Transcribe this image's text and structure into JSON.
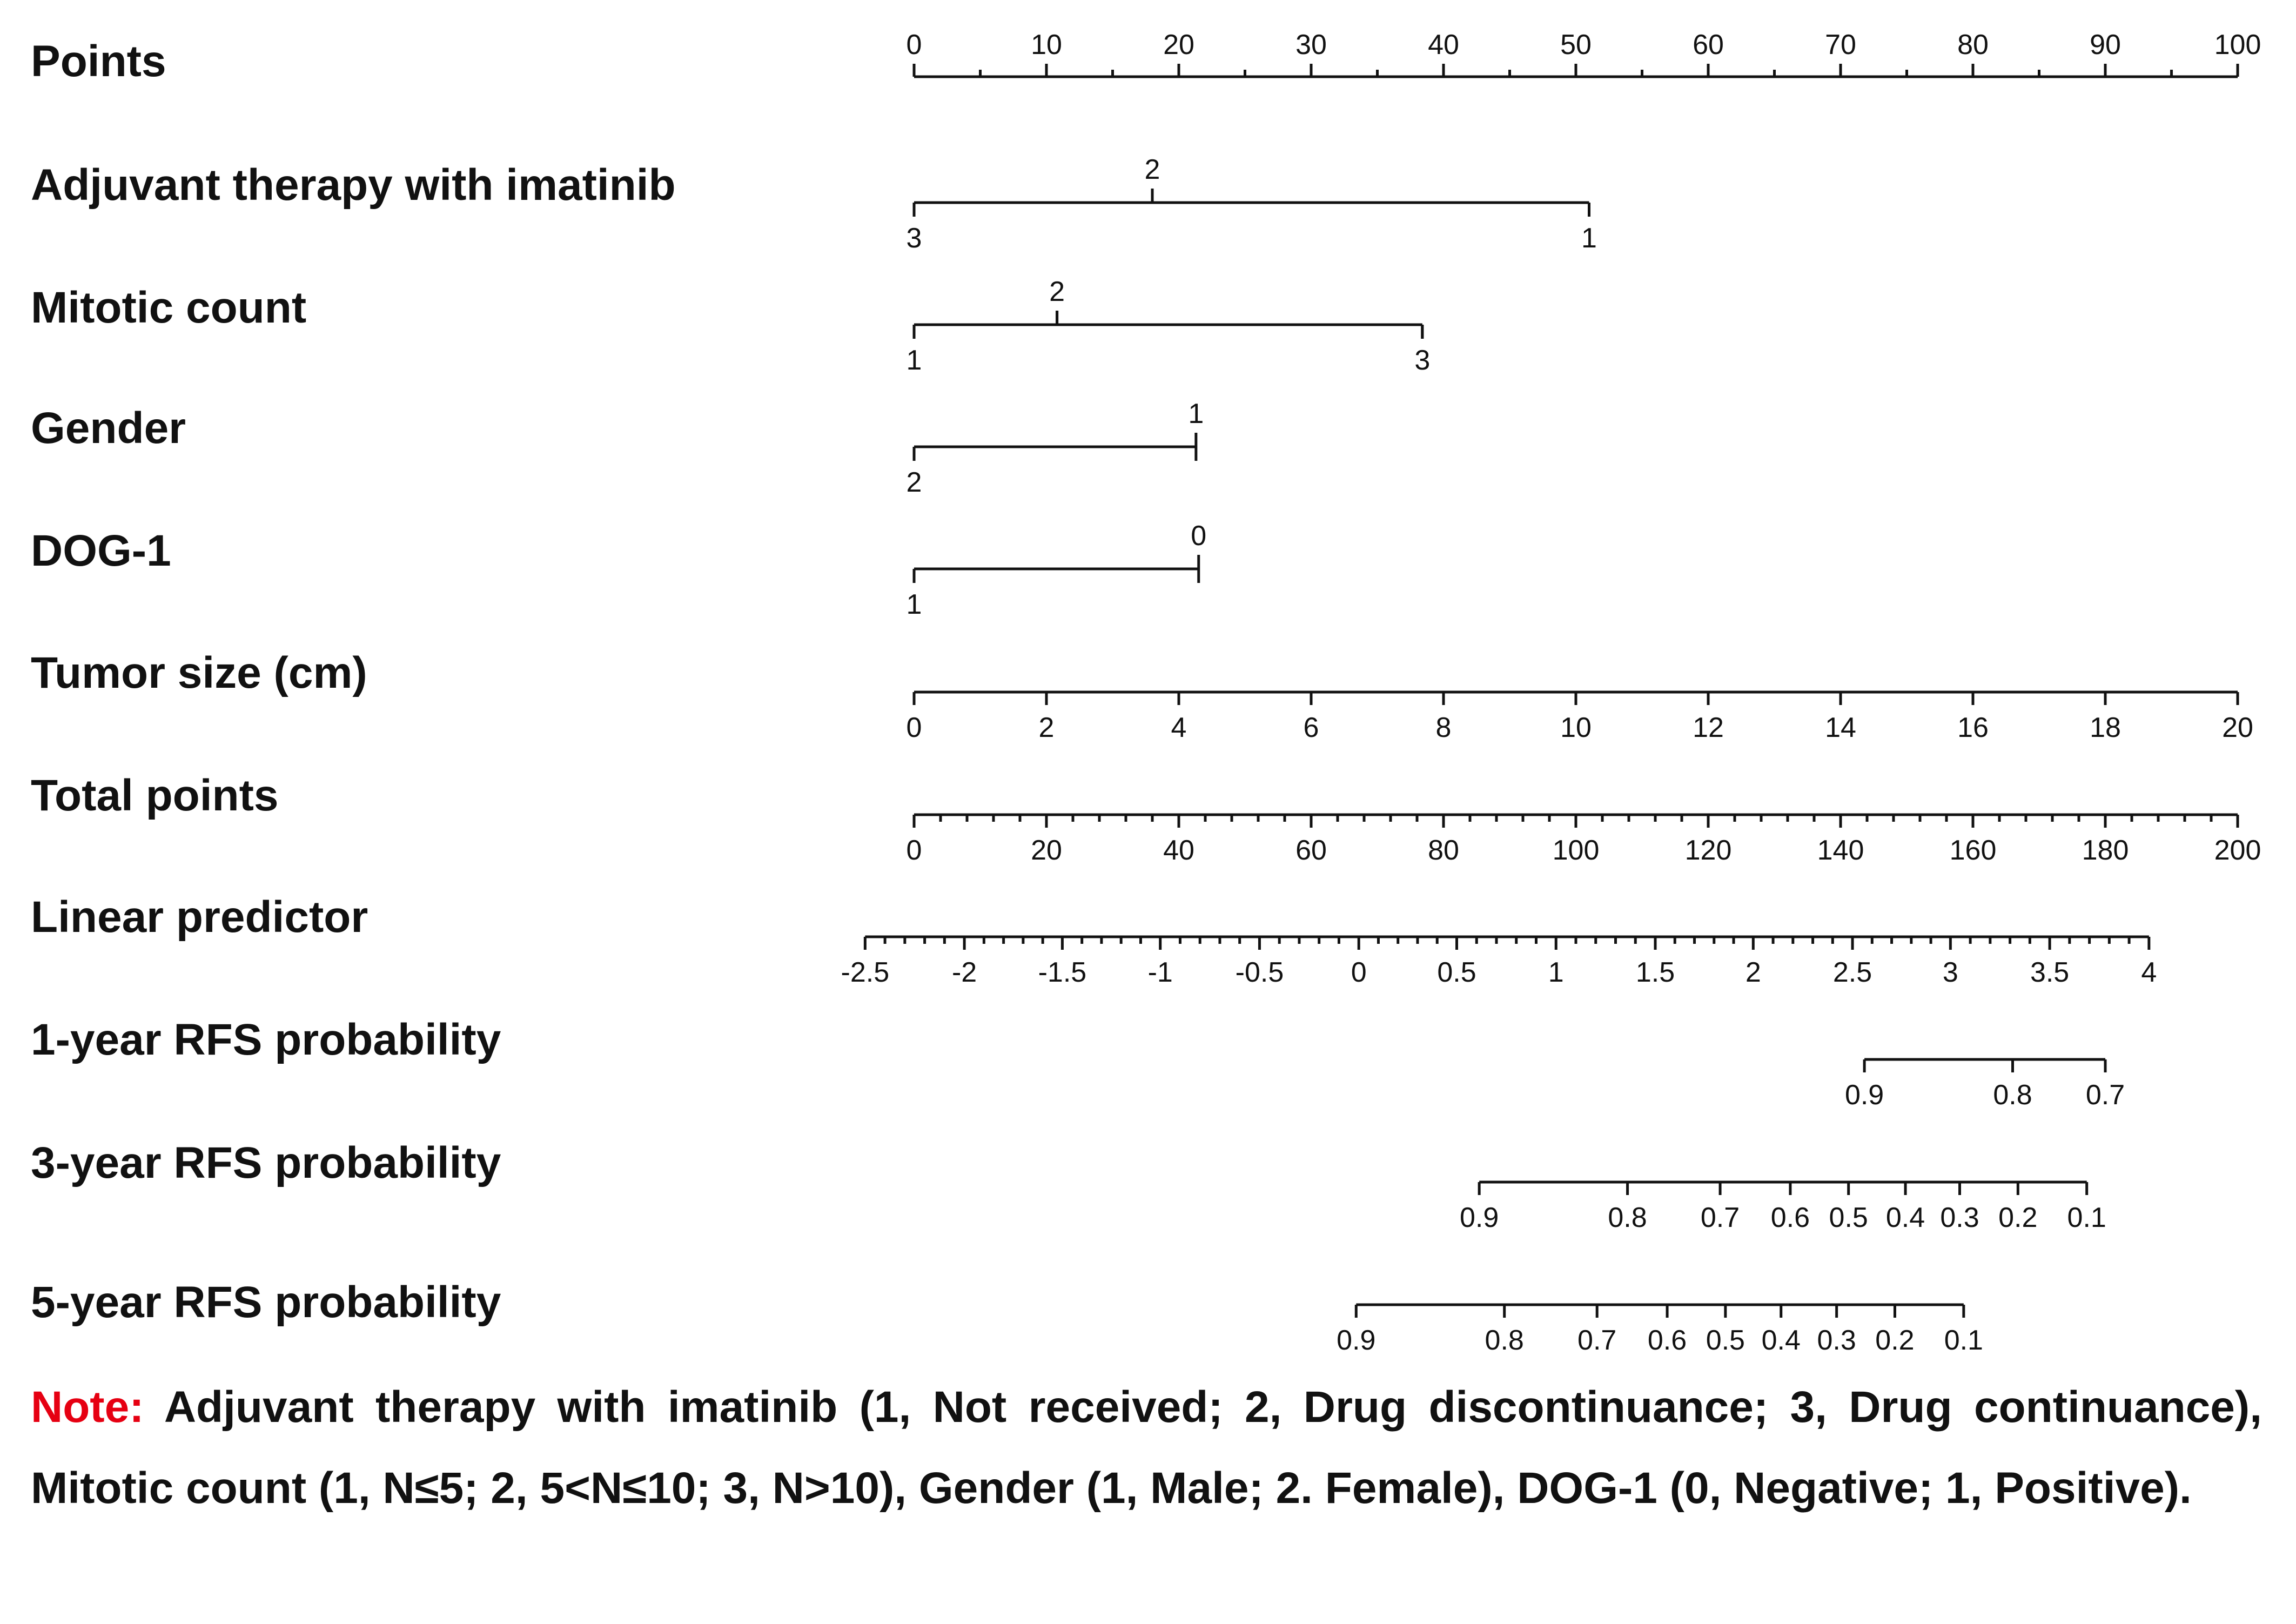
{
  "chart_data": {
    "type": "nomogram",
    "points_per_unit": 1,
    "rows": [
      {
        "name": "Points",
        "kind": "scale",
        "labels_above": true,
        "minor": 1,
        "ticks": [
          {
            "label": "0",
            "points": 0
          },
          {
            "label": "10",
            "points": 10
          },
          {
            "label": "20",
            "points": 20
          },
          {
            "label": "30",
            "points": 30
          },
          {
            "label": "40",
            "points": 40
          },
          {
            "label": "50",
            "points": 50
          },
          {
            "label": "60",
            "points": 60
          },
          {
            "label": "70",
            "points": 70
          },
          {
            "label": "80",
            "points": 80
          },
          {
            "label": "90",
            "points": 90
          },
          {
            "label": "100",
            "points": 100
          }
        ]
      },
      {
        "name": "Adjuvant therapy with imatinib",
        "kind": "categorical",
        "ticks": [
          {
            "label": "3",
            "points": 0,
            "side": "below"
          },
          {
            "label": "2",
            "points": 18,
            "side": "above"
          },
          {
            "label": "1",
            "points": 51,
            "side": "below"
          }
        ]
      },
      {
        "name": "Mitotic count",
        "kind": "categorical",
        "ticks": [
          {
            "label": "1",
            "points": 0,
            "side": "below"
          },
          {
            "label": "2",
            "points": 10.8,
            "side": "above"
          },
          {
            "label": "3",
            "points": 38.4,
            "side": "below"
          }
        ]
      },
      {
        "name": "Gender",
        "kind": "categorical",
        "ticks": [
          {
            "label": "2",
            "points": 0,
            "side": "below"
          },
          {
            "label": "1",
            "points": 21.3,
            "side": "above"
          }
        ]
      },
      {
        "name": "DOG-1",
        "kind": "categorical",
        "ticks": [
          {
            "label": "1",
            "points": 0,
            "side": "below"
          },
          {
            "label": "0",
            "points": 21.5,
            "side": "above"
          }
        ]
      },
      {
        "name": "Tumor size (cm)",
        "kind": "scale",
        "labels_above": false,
        "minor": 0,
        "ticks": [
          {
            "label": "0",
            "points": 0
          },
          {
            "label": "2",
            "points": 10
          },
          {
            "label": "4",
            "points": 20
          },
          {
            "label": "6",
            "points": 30
          },
          {
            "label": "8",
            "points": 40
          },
          {
            "label": "10",
            "points": 50
          },
          {
            "label": "12",
            "points": 60
          },
          {
            "label": "14",
            "points": 70
          },
          {
            "label": "16",
            "points": 80
          },
          {
            "label": "18",
            "points": 90
          },
          {
            "label": "20",
            "points": 100
          }
        ]
      },
      {
        "name": "Total points",
        "kind": "scale",
        "labels_above": false,
        "minor": 4,
        "ticks": [
          {
            "label": "0",
            "points": 0
          },
          {
            "label": "20",
            "points": 10
          },
          {
            "label": "40",
            "points": 20
          },
          {
            "label": "60",
            "points": 30
          },
          {
            "label": "80",
            "points": 40
          },
          {
            "label": "100",
            "points": 50
          },
          {
            "label": "120",
            "points": 60
          },
          {
            "label": "140",
            "points": 70
          },
          {
            "label": "160",
            "points": 80
          },
          {
            "label": "180",
            "points": 90
          },
          {
            "label": "200",
            "points": 100
          }
        ]
      },
      {
        "name": "Linear predictor",
        "kind": "scale",
        "labels_above": false,
        "minor": 4,
        "ticks": [
          {
            "label": "-2.5",
            "points": -3.7
          },
          {
            "label": "-2",
            "points": 3.8
          },
          {
            "label": "-1.5",
            "points": 11.2
          },
          {
            "label": "-1",
            "points": 18.6
          },
          {
            "label": "-0.5",
            "points": 26.1
          },
          {
            "label": "0",
            "points": 33.6
          },
          {
            "label": "0.5",
            "points": 41.0
          },
          {
            "label": "1",
            "points": 48.5
          },
          {
            "label": "1.5",
            "points": 56.0
          },
          {
            "label": "2",
            "points": 63.4
          },
          {
            "label": "2.5",
            "points": 70.9
          },
          {
            "label": "3",
            "points": 78.3
          },
          {
            "label": "3.5",
            "points": 85.8
          },
          {
            "label": "4",
            "points": 93.3
          }
        ]
      },
      {
        "name": "1-year RFS probability",
        "kind": "scale",
        "labels_above": false,
        "minor": 0,
        "ticks": [
          {
            "label": "0.9",
            "points": 71.8
          },
          {
            "label": "0.8",
            "points": 83.0
          },
          {
            "label": "0.7",
            "points": 90.0
          }
        ]
      },
      {
        "name": "3-year RFS probability",
        "kind": "scale",
        "labels_above": false,
        "minor": 0,
        "ticks": [
          {
            "label": "0.9",
            "points": 42.7
          },
          {
            "label": "0.8",
            "points": 53.9
          },
          {
            "label": "0.7",
            "points": 60.9
          },
          {
            "label": "0.6",
            "points": 66.2
          },
          {
            "label": "0.5",
            "points": 70.6
          },
          {
            "label": "0.4",
            "points": 74.9
          },
          {
            "label": "0.3",
            "points": 79.0
          },
          {
            "label": "0.2",
            "points": 83.4
          },
          {
            "label": "0.1",
            "points": 88.6
          }
        ]
      },
      {
        "name": "5-year RFS probability",
        "kind": "scale",
        "labels_above": false,
        "minor": 0,
        "ticks": [
          {
            "label": "0.9",
            "points": 33.4
          },
          {
            "label": "0.8",
            "points": 44.6
          },
          {
            "label": "0.7",
            "points": 51.6
          },
          {
            "label": "0.6",
            "points": 56.9
          },
          {
            "label": "0.5",
            "points": 61.3
          },
          {
            "label": "0.4",
            "points": 65.5
          },
          {
            "label": "0.3",
            "points": 69.7
          },
          {
            "label": "0.2",
            "points": 74.1
          },
          {
            "label": "0.1",
            "points": 79.3
          }
        ]
      }
    ]
  },
  "note": {
    "label": "Note:",
    "text": " Adjuvant therapy with imatinib (1, Not received; 2, Drug discontinuance; 3, Drug continuance), Mitotic count (1, N≤5; 2, 5<N≤10; 3, N>10), Gender (1, Male; 2. Female), DOG-1 (0, Negative;  1, Positive)."
  }
}
